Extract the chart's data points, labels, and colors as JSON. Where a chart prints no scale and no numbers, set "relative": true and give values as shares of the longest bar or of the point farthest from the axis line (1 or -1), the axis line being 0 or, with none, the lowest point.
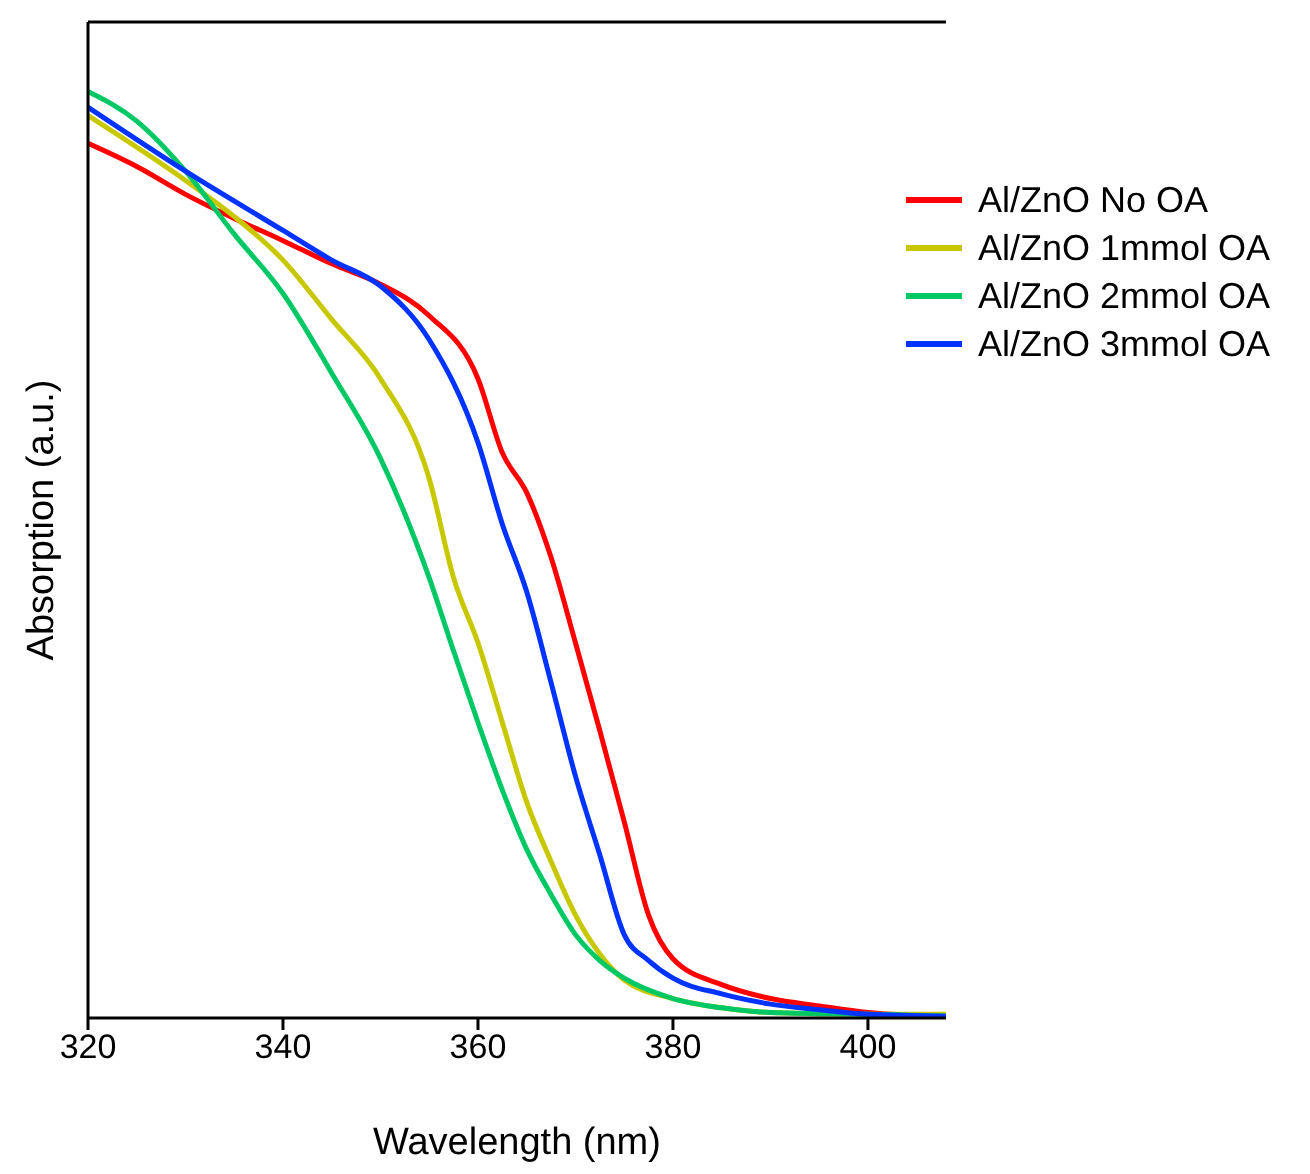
{
  "chart_data": {
    "type": "line",
    "xlabel": "Wavelength (nm)",
    "ylabel": "Absorption (a.u.)",
    "relative": true,
    "xlim": [
      320,
      408
    ],
    "xticks": [
      320,
      340,
      360,
      380,
      400
    ],
    "legend": "top right",
    "marker": "none",
    "line_style": "solid",
    "series": [
      {
        "name": "Al/ZnO No OA",
        "color": "#ff0000",
        "x": [
          320,
          325,
          330,
          335,
          340,
          345,
          350,
          355,
          360,
          362.5,
          365,
          367.5,
          370,
          372.5,
          375,
          377.5,
          380,
          385,
          390,
          395,
          400,
          408
        ],
        "values": [
          0.944,
          0.919,
          0.889,
          0.863,
          0.839,
          0.814,
          0.792,
          0.758,
          0.69,
          0.61,
          0.567,
          0.497,
          0.405,
          0.31,
          0.212,
          0.111,
          0.064,
          0.036,
          0.021,
          0.013,
          0.006,
          0.002
        ]
      },
      {
        "name": "Al/ZnO 1mmol OA",
        "color": "#c8c800",
        "x": [
          320,
          330,
          335,
          340,
          345,
          350,
          355,
          357.5,
          360,
          362.5,
          365,
          367.5,
          370,
          372.5,
          375,
          380,
          385,
          390,
          400,
          408
        ],
        "values": [
          0.974,
          0.904,
          0.865,
          0.818,
          0.754,
          0.69,
          0.582,
          0.475,
          0.405,
          0.319,
          0.233,
          0.169,
          0.111,
          0.069,
          0.041,
          0.021,
          0.011,
          0.006,
          0.004,
          0.004
        ]
      },
      {
        "name": "Al/ZnO 2mmol OA",
        "color": "#00c864",
        "x": [
          320,
          325,
          330,
          335,
          340,
          345,
          350,
          355,
          357.5,
          360,
          362.5,
          365,
          367.5,
          370,
          372.5,
          375,
          380,
          385,
          390,
          400,
          408
        ],
        "values": [
          1,
          0.968,
          0.914,
          0.846,
          0.782,
          0.696,
          0.604,
          0.475,
          0.396,
          0.319,
          0.246,
          0.182,
          0.133,
          0.09,
          0.062,
          0.043,
          0.021,
          0.011,
          0.006,
          0.004,
          0.002
        ]
      },
      {
        "name": "Al/ZnO 3mmol OA",
        "color": "#0033ff",
        "x": [
          320,
          330,
          340,
          345,
          350,
          355,
          360,
          362.5,
          365,
          367.5,
          370,
          372.5,
          375,
          377.5,
          380,
          385,
          390,
          395,
          400,
          408
        ],
        "values": [
          0.983,
          0.914,
          0.85,
          0.818,
          0.79,
          0.732,
          0.621,
          0.533,
          0.46,
          0.362,
          0.261,
          0.176,
          0.09,
          0.062,
          0.043,
          0.026,
          0.015,
          0.009,
          0.004,
          0.002
        ]
      }
    ]
  }
}
